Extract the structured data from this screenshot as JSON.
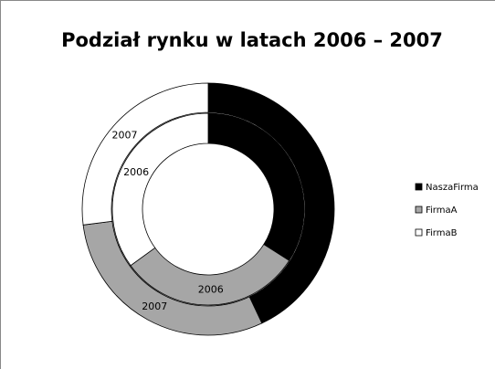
{
  "chart_data": {
    "type": "doughnut",
    "title": "Podział rynku w latach 2006 – 2007",
    "categories": [
      "2006",
      "2007"
    ],
    "series": [
      {
        "name": "NaszaFirma",
        "color": "#000000",
        "values": [
          34,
          43
        ]
      },
      {
        "name": "FirmaA",
        "color": "#a6a6a6",
        "values": [
          31,
          30
        ]
      },
      {
        "name": "FirmaB",
        "color": "#ffffff",
        "values": [
          35,
          27
        ]
      }
    ],
    "legend": "right"
  }
}
